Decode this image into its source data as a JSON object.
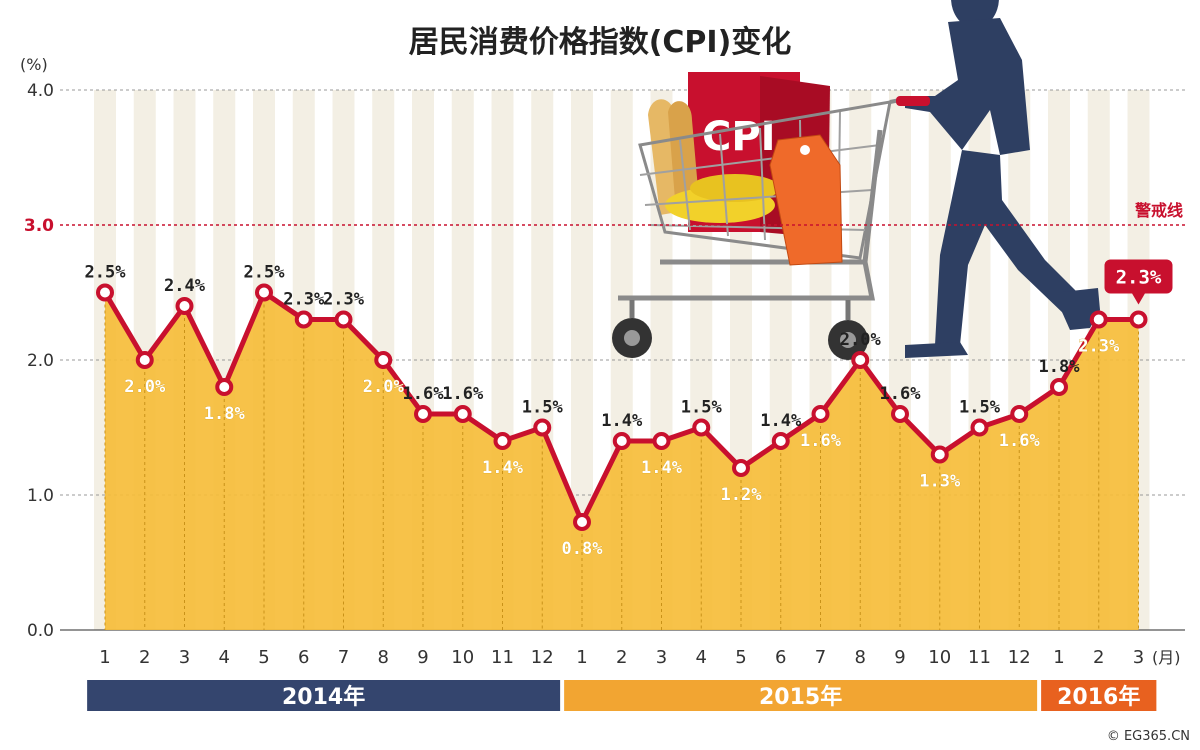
{
  "chart_data": {
    "type": "area",
    "title": "居民消费价格指数(CPI)变化",
    "ylabel": "(%)",
    "xunit": "(月)",
    "ylim": [
      0,
      4
    ],
    "yticks": [
      "0.0",
      "1.0",
      "2.0",
      "3.0",
      "4.0"
    ],
    "warning_line": {
      "value": 3.0,
      "label": "警戒线"
    },
    "categories": [
      "1",
      "2",
      "3",
      "4",
      "5",
      "6",
      "7",
      "8",
      "9",
      "10",
      "11",
      "12",
      "1",
      "2",
      "3",
      "4",
      "5",
      "6",
      "7",
      "8",
      "9",
      "10",
      "11",
      "12",
      "1",
      "2",
      "3"
    ],
    "values": [
      2.5,
      2.0,
      2.4,
      1.8,
      2.5,
      2.3,
      2.3,
      2.0,
      1.6,
      1.6,
      1.4,
      1.5,
      0.8,
      1.4,
      1.4,
      1.5,
      1.2,
      1.4,
      1.6,
      2.0,
      1.6,
      1.3,
      1.5,
      1.6,
      1.8,
      2.3,
      2.3
    ],
    "point_labels": [
      "2.5%",
      "2.0%",
      "2.4%",
      "1.8%",
      "2.5%",
      "2.3%",
      "2.3%",
      "2.0%",
      "1.6%",
      "1.6%",
      "1.4%",
      "1.5%",
      "0.8%",
      "1.4%",
      "1.4%",
      "1.5%",
      "1.2%",
      "1.4%",
      "1.6%",
      "2.0%",
      "1.6%",
      "1.3%",
      "1.5%",
      "1.6%",
      "1.8%",
      "2.3%",
      "2.3%"
    ],
    "label_positions": [
      "above",
      "below",
      "above",
      "below",
      "above",
      "above",
      "above",
      "below",
      "above",
      "above",
      "below",
      "above",
      "below",
      "above",
      "below",
      "above",
      "below",
      "above",
      "below",
      "above",
      "above",
      "below",
      "above",
      "below",
      "above",
      "below",
      "callout"
    ],
    "years": [
      {
        "label": "2014年",
        "start": 0,
        "end": 11,
        "color": "#34456e"
      },
      {
        "label": "2015年",
        "start": 12,
        "end": 23,
        "color": "#f2a532"
      },
      {
        "label": "2016年",
        "start": 24,
        "end": 26,
        "color": "#e8611f"
      }
    ],
    "grid": true,
    "colors": {
      "line": "#c8102e",
      "fill": "#f6bd3a",
      "warning": "#c8102e"
    }
  },
  "illustration": {
    "bag_text": "CPI",
    "icons": [
      "shopping-cart-icon",
      "shopper-silhouette-icon",
      "price-tag-icon"
    ]
  },
  "credit": "© EG365.CN"
}
